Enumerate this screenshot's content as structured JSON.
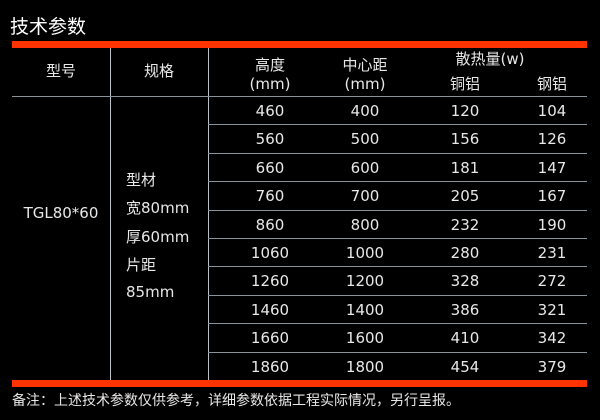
{
  "title": "技术参数",
  "headers": {
    "model": "型号",
    "spec": "规格",
    "height": "高度",
    "height_unit": "(mm)",
    "center": "中心距",
    "center_unit": "(mm)",
    "heat": "散热量(w)",
    "copper_al": "铜铝",
    "steel_al": "钢铝"
  },
  "model": "TGL80*60",
  "spec_lines": [
    "型材",
    "宽80mm",
    "厚60mm",
    "片距",
    "85mm"
  ],
  "rows": [
    [
      "460",
      "400",
      "120",
      "104"
    ],
    [
      "560",
      "500",
      "156",
      "126"
    ],
    [
      "660",
      "600",
      "181",
      "147"
    ],
    [
      "760",
      "700",
      "205",
      "167"
    ],
    [
      "860",
      "800",
      "232",
      "190"
    ],
    [
      "1060",
      "1000",
      "280",
      "231"
    ],
    [
      "1260",
      "1200",
      "328",
      "272"
    ],
    [
      "1460",
      "1400",
      "386",
      "321"
    ],
    [
      "1660",
      "1600",
      "410",
      "342"
    ],
    [
      "1860",
      "1800",
      "454",
      "379"
    ]
  ],
  "note": "备注：上述技术参数仅供参考，详细参数依据工程实际情况，另行呈报。",
  "colors": {
    "accent": "#ff3300"
  }
}
